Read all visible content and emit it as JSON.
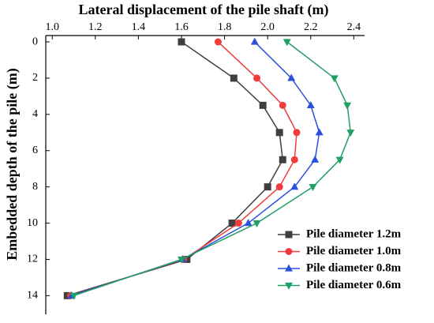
{
  "chart_data": {
    "type": "line",
    "title": "Lateral displacement of the pile shaft (m)",
    "y_label": "Embedded depth of the pile (m)",
    "y": [
      0,
      2,
      3.5,
      5,
      6.5,
      8,
      10,
      12,
      14
    ],
    "y_inverted": true,
    "x_axis_position": "top",
    "xlim": [
      0.97,
      2.45
    ],
    "xticks": [
      {
        "value": 1,
        "label": "1.0"
      },
      1.2,
      1.4,
      1.6,
      1.8,
      {
        "value": 2,
        "label": "2.0"
      },
      2.2,
      2.4
    ],
    "ylim": [
      -0.35,
      14.9
    ],
    "yticks": [
      0,
      2,
      4,
      6,
      8,
      10,
      12,
      14
    ],
    "legend": "lower right",
    "series": [
      {
        "name": "Pile diameter 1.2m",
        "color": "#3f3f3f",
        "marker": "square",
        "values": [
          1.6,
          1.843,
          1.978,
          2.055,
          2.07,
          2.0,
          1.835,
          1.625,
          1.07
        ]
      },
      {
        "name": "Pile diameter 1.0m",
        "color": "#f03c3c",
        "marker": "circle",
        "values": [
          1.77,
          1.95,
          2.07,
          2.135,
          2.125,
          2.055,
          1.865,
          1.61,
          1.085
        ]
      },
      {
        "name": "Pile diameter 0.8m",
        "color": "#2b4fde",
        "marker": "triangle-up",
        "values": [
          1.94,
          2.11,
          2.2,
          2.24,
          2.22,
          2.125,
          1.91,
          1.605,
          1.09
        ]
      },
      {
        "name": "Pile diameter 0.6m",
        "color": "#1fa064",
        "marker": "triangle-down",
        "values": [
          2.09,
          2.31,
          2.37,
          2.385,
          2.335,
          2.21,
          1.95,
          1.6,
          1.1
        ]
      }
    ]
  }
}
